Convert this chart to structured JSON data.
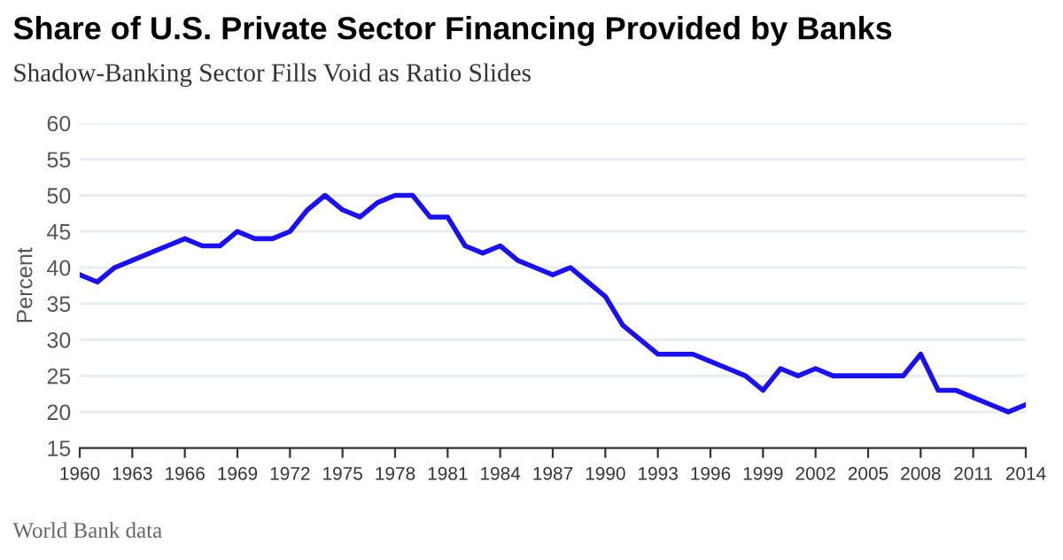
{
  "chart_data": {
    "type": "line",
    "title": "Share of U.S. Private Sector Financing Provided by Banks",
    "subtitle": "Shadow-Banking Sector Fills Void as Ratio Slides",
    "ylabel": "Percent",
    "annotations": [
      "World Bank data"
    ],
    "x": [
      1960,
      1961,
      1962,
      1963,
      1964,
      1965,
      1966,
      1967,
      1968,
      1969,
      1970,
      1971,
      1972,
      1973,
      1974,
      1975,
      1976,
      1977,
      1978,
      1979,
      1980,
      1981,
      1982,
      1983,
      1984,
      1985,
      1986,
      1987,
      1988,
      1989,
      1990,
      1991,
      1992,
      1993,
      1994,
      1995,
      1996,
      1997,
      1998,
      1999,
      2000,
      2001,
      2002,
      2003,
      2004,
      2005,
      2006,
      2007,
      2008,
      2009,
      2010,
      2011,
      2012,
      2013,
      2014
    ],
    "series": [
      {
        "color": "#1a12e6",
        "values": [
          39,
          38,
          40,
          41,
          42,
          43,
          44,
          43,
          43,
          45,
          44,
          44,
          45,
          48,
          50,
          48,
          47,
          49,
          50,
          50,
          47,
          47,
          43,
          42,
          43,
          41,
          40,
          39,
          40,
          38,
          36,
          32,
          30,
          28,
          28,
          28,
          27,
          26,
          25,
          23,
          26,
          25,
          26,
          25,
          25,
          25,
          25,
          25,
          28,
          23,
          23,
          22,
          21,
          20,
          21
        ]
      }
    ],
    "xlim": [
      1960,
      2014
    ],
    "xticks": [
      1960,
      1963,
      1966,
      1969,
      1972,
      1975,
      1978,
      1981,
      1984,
      1987,
      1990,
      1993,
      1996,
      1999,
      2002,
      2005,
      2008,
      2011,
      2014
    ],
    "ylim": [
      15,
      60
    ],
    "yticks": [
      15,
      20,
      25,
      30,
      35,
      40,
      45,
      50,
      55,
      60
    ],
    "grid": "y",
    "marker": "none",
    "line_style": "solid"
  }
}
